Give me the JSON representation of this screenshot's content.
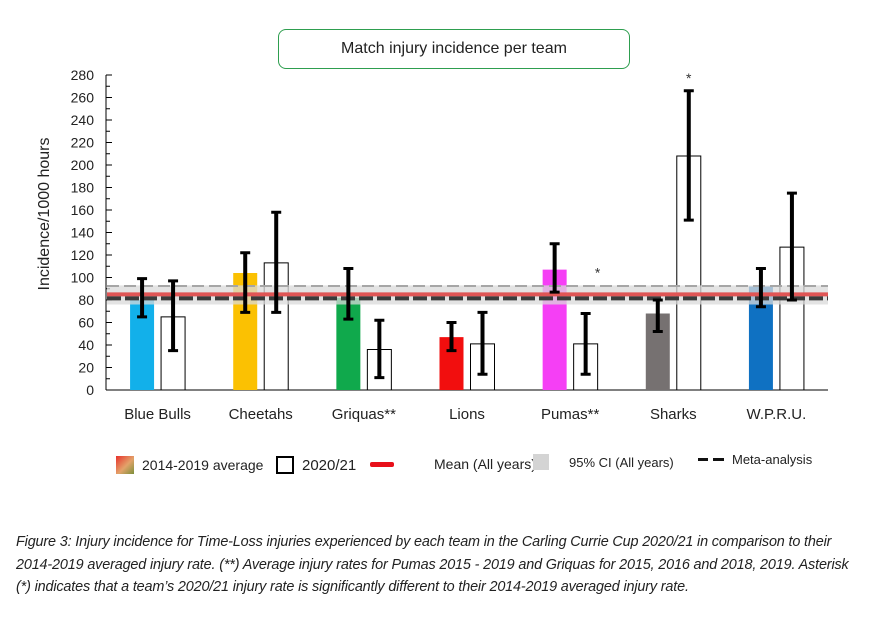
{
  "chart_data": {
    "type": "bar",
    "title": "Match injury incidence per team",
    "xlabel": "",
    "ylabel": "Incidence/1000 hours",
    "ylim": [
      0,
      280
    ],
    "yticks": [
      0,
      20,
      40,
      60,
      80,
      100,
      120,
      140,
      160,
      180,
      200,
      220,
      240,
      260,
      280
    ],
    "grid": false,
    "categories": [
      "Blue Bulls",
      "Cheetahs",
      "Griquas**",
      "Lions",
      "Pumas**",
      "Sharks",
      "W.P.R.U."
    ],
    "series": [
      {
        "name": "2014-2019 average",
        "style": "filled",
        "colors": [
          "#12b0ea",
          "#fbc102",
          "#10a94c",
          "#f20e0e",
          "#f53ff5",
          "#767171",
          "#0f71c2"
        ],
        "values": [
          80,
          104,
          82,
          47,
          107,
          68,
          92
        ],
        "error_low": [
          65,
          69,
          63,
          35,
          87,
          52,
          74
        ],
        "error_high": [
          99,
          122,
          108,
          60,
          130,
          80,
          108
        ]
      },
      {
        "name": "2020/21",
        "style": "open",
        "colors": [
          "#ffffff",
          "#ffffff",
          "#ffffff",
          "#ffffff",
          "#ffffff",
          "#ffffff",
          "#ffffff"
        ],
        "values": [
          65,
          113,
          36,
          41,
          41,
          208,
          127
        ],
        "error_low": [
          35,
          69,
          11,
          14,
          14,
          151,
          80
        ],
        "error_high": [
          97,
          158,
          62,
          69,
          68,
          266,
          175
        ]
      }
    ],
    "annotations": [
      {
        "category": "Pumas**",
        "series": "2020/21",
        "text": "*",
        "y": 107
      },
      {
        "category": "Sharks",
        "series": "2020/21",
        "text": "*",
        "y": 280
      }
    ],
    "reference_lines": {
      "mean_all_years": {
        "label": "Mean (All years)",
        "value": 85,
        "color": "#e8101a"
      },
      "ci95_all_years": {
        "label": "95% CI (All years)",
        "low": 76,
        "high": 93,
        "color": "#d9d9d9"
      },
      "meta_analysis": {
        "label": "Meta-analysis",
        "value": 81.5,
        "color": "#3b3b3b"
      },
      "upper_dashed": {
        "value": 92.5,
        "color": "#a6a6a6"
      }
    },
    "legend_placement": "bottom",
    "legend": [
      "2014-2019 average",
      "2020/21",
      "Mean (All years)",
      "95% CI (All years)",
      "Meta-analysis"
    ]
  },
  "legend": {
    "avg": "2014-2019 average",
    "season": "2020/21",
    "mean": "Mean (All years)",
    "ci": "95% CI (All years)",
    "meta": "Meta-analysis"
  },
  "caption": "Figure 3: Injury incidence for Time-Loss injuries experienced by each team in the Carling Currie Cup 2020/21 in comparison to their 2014-2019 averaged injury rate. (**) Average injury rates for Pumas 2015 - 2019 and Griquas for 2015, 2016 and 2018, 2019. Asterisk (*) indicates that a team’s 2020/21 injury rate is significantly different to their 2014-2019 averaged injury rate."
}
